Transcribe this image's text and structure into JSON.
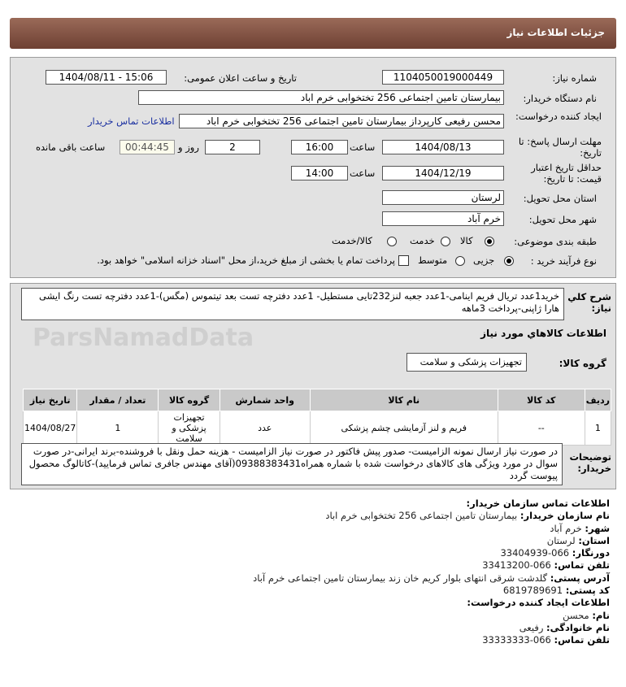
{
  "header": {
    "title": "جزئیات اطلاعات نیاز"
  },
  "watermark": "ParsNamadData",
  "form": {
    "need_number_label": "شماره نیاز:",
    "need_number": "1104050019000449",
    "announce_label": "تاریخ و ساعت اعلان عمومی:",
    "announce_value": "1404/08/11 - 15:06",
    "buyer_org_label": "نام دستگاه خریدار:",
    "buyer_org": "بیمارستان تامین اجتماعی  256 تختخوابی خرم اباد",
    "creator_label": "ایجاد کننده درخواست:",
    "creator": "محسن رفیعی کارپرداز بیمارستان تامین اجتماعی  256 تختخوابی خرم اباد",
    "contact_link": "اطلاعات تماس خریدار",
    "deadline_label": "مهلت ارسال پاسخ: تا تاریخ:",
    "deadline_date": "1404/08/13",
    "time_label": "ساعت",
    "deadline_time": "16:00",
    "days": "2",
    "days_label": "روز و",
    "remaining": "00:44:45",
    "remaining_label": "ساعت باقی مانده",
    "validity_label": "حداقل تاریخ اعتبار قیمت: تا تاریخ:",
    "validity_date": "1404/12/19",
    "validity_time": "14:00",
    "province_label": "استان محل تحویل:",
    "province": "لرستان",
    "city_label": "شهر محل تحویل:",
    "city": "خرم آباد",
    "category_label": "طبقه بندی موضوعی:",
    "category_options": [
      "کالا",
      "خدمت",
      "کالا/خدمت"
    ],
    "category_selected": "کالا",
    "process_label": "نوع فرآیند خرید :",
    "process_options": [
      "جزیی",
      "متوسط"
    ],
    "process_selected": "جزیی",
    "payment_note": "پرداخت تمام یا بخشی از مبلغ خرید،از محل \"اسناد خزانه اسلامی\" خواهد بود."
  },
  "details": {
    "summary_label": "شرح کلي نياز:",
    "summary": "خرید1عدد تریال فریم اینامی-1عدد جعبه لنز232تایی مستطیل- 1عدد دفترچه تست بعد تیتموس (مگس)-1عدد دفترچه تست رنگ ایشی هارا ژاپنی-پرداخت 3ماهه",
    "goods_title": "اطلاعات کالاهاي مورد نياز",
    "group_label": "گروه کالا:",
    "group": "تجهیزات پزشکی و سلامت",
    "table": {
      "headers": [
        "ردیف",
        "کد کالا",
        "نام کالا",
        "واحد شمارش",
        "گروه کالا",
        "تعداد / مقدار",
        "تاریخ نیاز"
      ],
      "rows": [
        [
          "1",
          "--",
          "فریم و لنز آزمایشی چشم پزشکی",
          "عدد",
          "تجهیزات پزشکی و سلامت",
          "1",
          "1404/08/27"
        ]
      ]
    },
    "notes_label": "توضیحات خریدار:",
    "notes": "در صورت نیاز ارسال نمونه الزامیست- صدور پیش فاکتور در صورت نیاز الزامیست - هزینه حمل ونقل با فروشنده-برند ایرانی-در صورت سوال در مورد ویژگی های کالاهای درخواست شده با شماره همراه09388383431(آقای مهندس جافری تماس فرمایید)-کاتالوگ محصول پیوست گردد"
  },
  "contact": {
    "title": "اطلاعات تماس سازمان خریدار:",
    "org_label": "نام سازمان خریدار:",
    "org": "بیمارستان تامین اجتماعی 256 تختخوابی خرم اباد",
    "city_label": "شهر:",
    "city": "خرم آباد",
    "province_label": "استان:",
    "province": "لرستان",
    "fax_label": "دورنگار:",
    "fax": "066-33404939",
    "phone_label": "تلفن تماس:",
    "phone": "066-33413200",
    "address_label": "آدرس پستی:",
    "address": "گلدشت شرقی انتهای بلوار کریم خان زند بیمارستان تامین اجتماعی خرم آباد",
    "postal_label": "کد پستی:",
    "postal": "6819789691",
    "creator_title": "اطلاعات ایجاد کننده درخواست:",
    "name_label": "نام:",
    "name": "محسن",
    "family_label": "نام خانوادگی:",
    "family": "رفیعی",
    "creator_phone_label": "تلفن تماس:",
    "creator_phone": "066-33333333"
  }
}
